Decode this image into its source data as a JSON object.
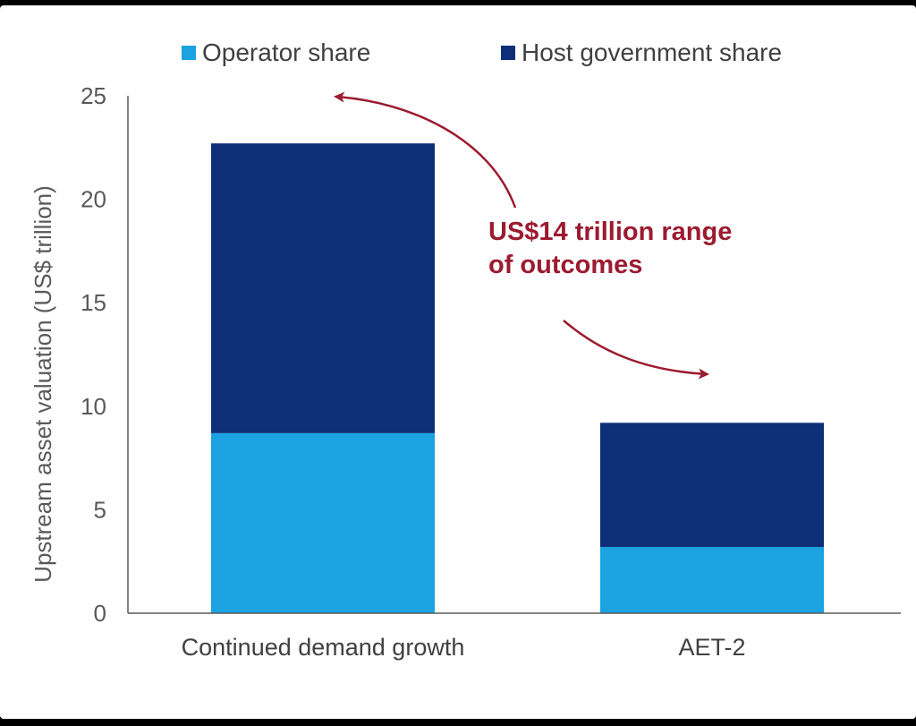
{
  "chart_data": {
    "type": "bar",
    "stacked": true,
    "categories": [
      "Continued demand growth",
      "AET-2"
    ],
    "series": [
      {
        "name": "Operator share",
        "values": [
          8.7,
          3.2
        ],
        "color": "#1AA3E0"
      },
      {
        "name": "Host government share",
        "values": [
          14.0,
          6.0
        ],
        "color": "#0E2F77"
      }
    ],
    "title": "",
    "xlabel": "",
    "ylabel": "Upstream asset valuation (US$ trillion)",
    "ylim": [
      0,
      25
    ],
    "yticks": [
      0,
      5,
      10,
      15,
      20,
      25
    ],
    "grid": false,
    "legend_position": "top",
    "annotation": {
      "lines": [
        "US$14 trillion range",
        "of outcomes"
      ],
      "color": "#9B1B30"
    }
  }
}
